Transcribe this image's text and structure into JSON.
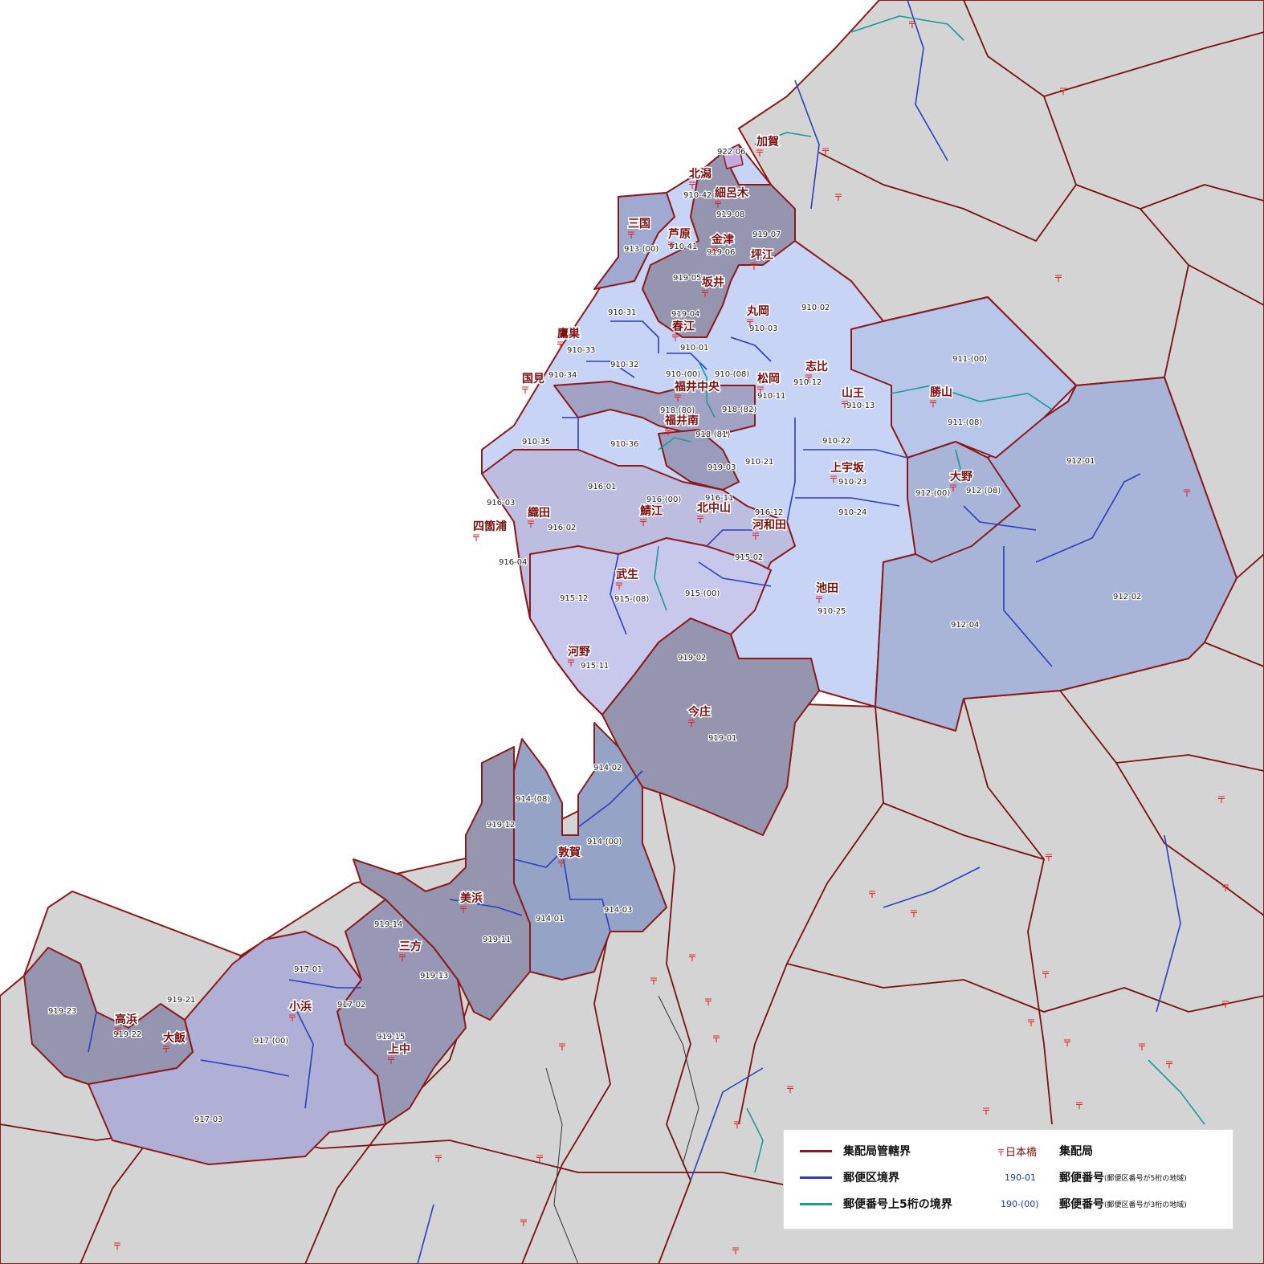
{
  "colors": {
    "background_land": "#d4d4d4",
    "sea": "#ffffff",
    "boundary_delivery": "#8b1a1a",
    "boundary_postal": "#2b3fbf",
    "boundary_upper5": "#1a9a9a",
    "region_light": "#c8d4f5",
    "region_lavender": "#c0c0e2",
    "region_mid": "#a8b4d8",
    "region_dark": "#9595b0"
  },
  "offices": [
    "加賀",
    "北潟",
    "細呂木",
    "三国",
    "芦原",
    "金津",
    "坪江",
    "坂井",
    "丸岡",
    "春江",
    "鷹巣",
    "国見",
    "志比",
    "松岡",
    "山王",
    "勝山",
    "福井中央",
    "福井南",
    "上宇坂",
    "大野",
    "織田",
    "鯖江",
    "北中山",
    "河和田",
    "四箇浦",
    "武生",
    "池田",
    "河野",
    "今庄",
    "敦賀",
    "美浜",
    "三方",
    "小浜",
    "高浜",
    "大飯",
    "上中"
  ],
  "codes": [
    "922-06",
    "910-42",
    "919-08",
    "919-07",
    "913-(00)",
    "910-41",
    "919-06",
    "919-05",
    "910-31",
    "919-04",
    "910-03",
    "910-02",
    "910-33",
    "910-01",
    "910-34",
    "910-32",
    "910-(00)",
    "910-(08)",
    "910-12",
    "910-11",
    "910-13",
    "911-(00)",
    "911-(08)",
    "918-(80)",
    "918-(82)",
    "918-(81)",
    "910-35",
    "910-36",
    "910-22",
    "919-03",
    "910-21",
    "910-23",
    "912-(00)",
    "912-(08)",
    "912-01",
    "916-03",
    "916-01",
    "916-(00)",
    "916-11",
    "916-02",
    "916-12",
    "910-24",
    "916-04",
    "915-02",
    "915-12",
    "915-(08)",
    "915-(00)",
    "910-25",
    "912-04",
    "912-02",
    "915-11",
    "919-02",
    "919-01",
    "914-02",
    "914-(08)",
    "919-12",
    "914-(00)",
    "919-14",
    "919-11",
    "914-01",
    "914-03",
    "919-13",
    "917-01",
    "919-21",
    "919-23",
    "919-22",
    "917-02",
    "917-(00)",
    "919-15",
    "917-03"
  ],
  "legend": {
    "delivery_boundary": "集配局管轄界",
    "postal_boundary": "郵便区境界",
    "upper5_boundary": "郵便番号上5桁の境界",
    "office_sample": "日本橋",
    "office_meaning": "集配局",
    "code5_sample": "190-01",
    "code5_meaning": "郵便番号",
    "code5_note": "(郵便区番号が5桁の地域)",
    "code3_sample": "190-(00)",
    "code3_meaning": "郵便番号",
    "code3_note": "(郵便区番号が3桁の地域)",
    "post_mark": "〒"
  }
}
